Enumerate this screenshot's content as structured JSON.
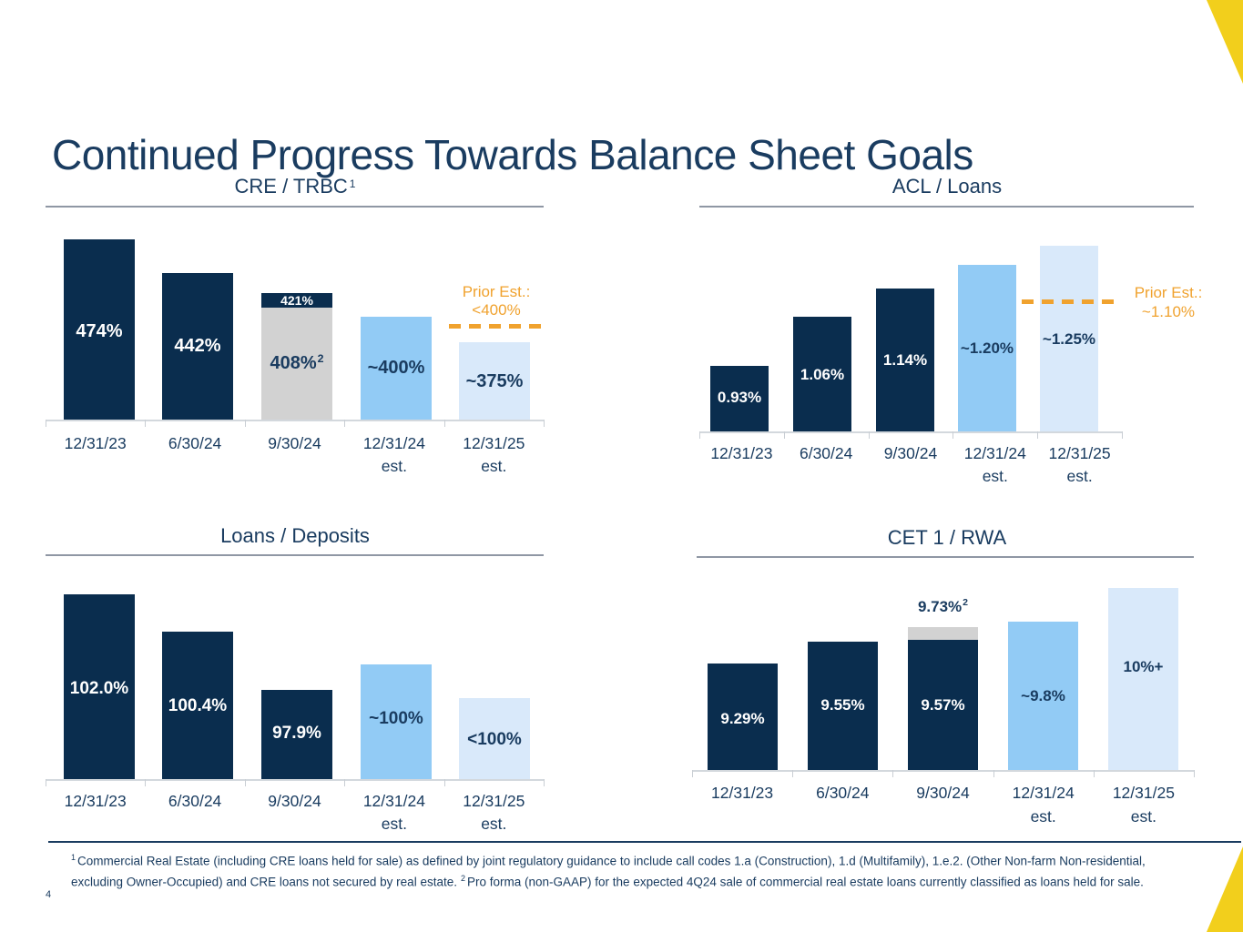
{
  "slide": {
    "title": "Continued Progress Towards Balance Sheet Goals",
    "page_number": "4",
    "footnotes": [
      {
        "marker": "1",
        "text": "Commercial Real Estate (including CRE loans held for sale) as defined by joint regulatory guidance to include call codes 1.a (Construction), 1.d (Multifamily), 1.e.2. (Other Non-farm Non-residential, excluding Owner-Occupied) and CRE loans not secured by real estate."
      },
      {
        "marker": "2",
        "text": "Pro forma (non-GAAP) for the expected 4Q24 sale of commercial real estate loans currently classified as loans held for sale."
      }
    ]
  },
  "colors": {
    "bar_dark_navy": "#0A2D4E",
    "bar_medium_blue": "#92CBF5",
    "bar_light_blue": "#D9E9FA",
    "bar_gray": "#D2D2D2",
    "text_navy": "#1A3C60",
    "prior_estimate_orange": "#F0A22E",
    "accent_yellow": "#F2CF1C"
  },
  "chart_data": [
    {
      "id": "cre-trbc",
      "type": "bar",
      "title": "CRE / TRBC",
      "title_sup": "1",
      "units": "%",
      "grid": false,
      "value_labels_on_bars": true,
      "categories": [
        {
          "label": "12/31/23",
          "sub": ""
        },
        {
          "label": "6/30/24",
          "sub": ""
        },
        {
          "label": "9/30/24",
          "sub": ""
        },
        {
          "label": "12/31/24",
          "sub": "est."
        },
        {
          "label": "12/31/25",
          "sub": "est."
        }
      ],
      "bars": [
        {
          "value": 474,
          "label": "474%",
          "sup": "",
          "style": "dark"
        },
        {
          "value": 442,
          "label": "442%",
          "sup": "",
          "style": "dark"
        },
        {
          "value": 408,
          "label": "408%",
          "sup": "2",
          "style": "gray",
          "cap": {
            "value": 421,
            "label": "421%",
            "sup": "",
            "style": "dark",
            "label_position": "inside"
          }
        },
        {
          "value": 400,
          "label": "~400%",
          "sup": "",
          "style": "medium"
        },
        {
          "value": 375,
          "label": "~375%",
          "sup": "",
          "style": "light"
        }
      ],
      "prior_estimate": {
        "text": "Prior Est.:",
        "value_text": "<400%",
        "value": 400
      }
    },
    {
      "id": "acl-loans",
      "type": "bar",
      "title": "ACL / Loans",
      "title_sup": "",
      "units": "%",
      "grid": false,
      "value_labels_on_bars": true,
      "categories": [
        {
          "label": "12/31/23",
          "sub": ""
        },
        {
          "label": "6/30/24",
          "sub": ""
        },
        {
          "label": "9/30/24",
          "sub": ""
        },
        {
          "label": "12/31/24",
          "sub": "est."
        },
        {
          "label": "12/31/25",
          "sub": "est."
        }
      ],
      "bars": [
        {
          "value": 0.93,
          "label": "0.93%",
          "sup": "",
          "style": "dark"
        },
        {
          "value": 1.06,
          "label": "1.06%",
          "sup": "",
          "style": "dark"
        },
        {
          "value": 1.14,
          "label": "1.14%",
          "sup": "",
          "style": "dark"
        },
        {
          "value": 1.2,
          "label": "~1.20%",
          "sup": "",
          "style": "medium"
        },
        {
          "value": 1.25,
          "label": "~1.25%",
          "sup": "",
          "style": "light"
        }
      ],
      "prior_estimate": {
        "text": "Prior Est.:",
        "value_text": "~1.10%",
        "value": 1.1
      }
    },
    {
      "id": "loans-deposits",
      "type": "bar",
      "title": "Loans / Deposits",
      "title_sup": "",
      "units": "%",
      "grid": false,
      "value_labels_on_bars": true,
      "categories": [
        {
          "label": "12/31/23",
          "sub": ""
        },
        {
          "label": "6/30/24",
          "sub": ""
        },
        {
          "label": "9/30/24",
          "sub": ""
        },
        {
          "label": "12/31/24",
          "sub": "est."
        },
        {
          "label": "12/31/25",
          "sub": "est."
        }
      ],
      "bars": [
        {
          "value": 102.0,
          "label": "102.0%",
          "sup": "",
          "style": "dark"
        },
        {
          "value": 100.4,
          "label": "100.4%",
          "sup": "",
          "style": "dark"
        },
        {
          "value": 97.9,
          "label": "97.9%",
          "sup": "",
          "style": "dark"
        },
        {
          "value": 100,
          "label": "~100%",
          "sup": "",
          "style": "medium"
        },
        {
          "value": 100,
          "label": "<100%",
          "sup": "",
          "style": "light"
        }
      ]
    },
    {
      "id": "cet1-rwa",
      "type": "bar",
      "title": "CET 1 / RWA",
      "title_sup": "",
      "units": "%",
      "grid": false,
      "value_labels_on_bars": true,
      "categories": [
        {
          "label": "12/31/23",
          "sub": ""
        },
        {
          "label": "6/30/24",
          "sub": ""
        },
        {
          "label": "9/30/24",
          "sub": ""
        },
        {
          "label": "12/31/24",
          "sub": "est."
        },
        {
          "label": "12/31/25",
          "sub": "est."
        }
      ],
      "bars": [
        {
          "value": 9.29,
          "label": "9.29%",
          "sup": "",
          "style": "dark"
        },
        {
          "value": 9.55,
          "label": "9.55%",
          "sup": "",
          "style": "dark"
        },
        {
          "value": 9.57,
          "label": "9.57%",
          "sup": "",
          "style": "dark",
          "cap": {
            "value": 9.73,
            "label": "9.73%",
            "sup": "2",
            "style": "gray",
            "label_position": "above"
          }
        },
        {
          "value": 9.8,
          "label": "~9.8%",
          "sup": "",
          "style": "medium"
        },
        {
          "value": 10,
          "label": "10%+",
          "sup": "",
          "style": "light"
        }
      ]
    }
  ]
}
